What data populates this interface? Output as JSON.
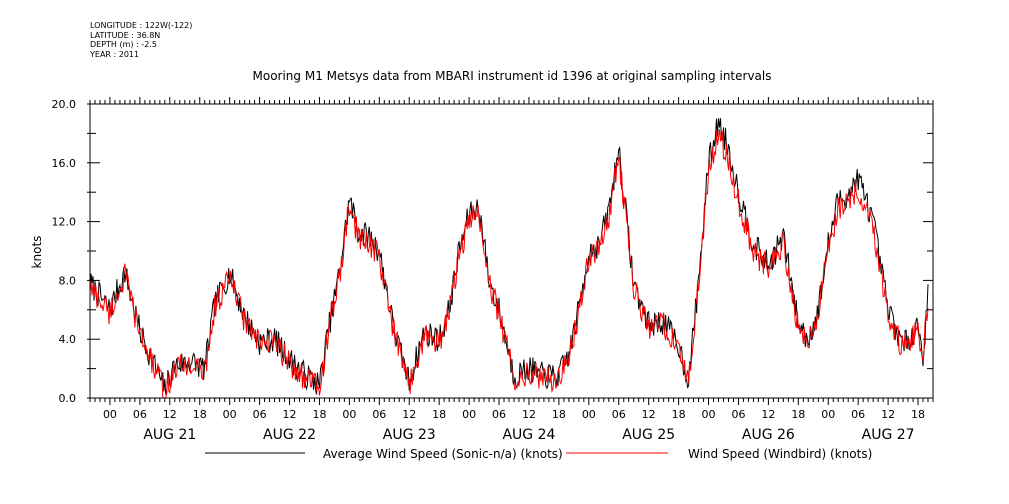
{
  "metadata": {
    "longitude": "LONGITUDE : 122W(-122)",
    "latitude": "LATITUDE : 36.8N",
    "depth": "DEPTH (m) : -2.5",
    "year": "YEAR : 2011"
  },
  "chart_data": {
    "type": "line",
    "title": "Mooring M1 Metsys data from MBARI instrument id 1396 at original sampling intervals",
    "ylabel": "knots",
    "ylim": [
      0,
      20
    ],
    "yticks": [
      "0.0",
      "4.0",
      "8.0",
      "12.0",
      "16.0",
      "20.0"
    ],
    "xlim_hours": [
      -4,
      165
    ],
    "hour_tick_labels": [
      "00",
      "06",
      "12",
      "18"
    ],
    "day_labels": [
      "AUG 21",
      "AUG 22",
      "AUG 23",
      "AUG 24",
      "AUG 25",
      "AUG 26",
      "AUG 27"
    ],
    "x_unit": "hours since 2011-08-21 00:00",
    "x": [
      -4,
      0,
      3,
      6,
      9,
      11,
      13,
      16,
      19,
      21,
      24,
      27,
      30,
      33,
      36,
      39,
      42,
      44,
      46,
      48,
      50,
      52,
      54,
      57,
      60,
      63,
      66,
      68,
      70,
      72,
      74,
      76,
      78,
      81,
      84,
      87,
      90,
      92,
      94,
      96,
      98,
      100,
      102,
      105,
      108,
      111,
      114,
      116,
      118,
      120,
      122,
      124,
      126,
      129,
      132,
      135,
      138,
      140,
      142,
      144,
      146,
      148,
      150,
      153,
      156,
      159,
      162,
      163,
      164
    ],
    "series": [
      {
        "name": "Average Wind Speed (Sonic-n/a) (knots)",
        "color": "#000000",
        "values": [
          7.8,
          6,
          8.6,
          4.5,
          2.2,
          0.6,
          2.2,
          2.5,
          2,
          6.4,
          8.5,
          5.5,
          3.8,
          4,
          2.6,
          1.6,
          0.9,
          5,
          8.5,
          13.5,
          11.2,
          11,
          10,
          4.5,
          1.1,
          4.5,
          4,
          6,
          10,
          12.5,
          13,
          8,
          6,
          1.5,
          2,
          1.5,
          1.5,
          3,
          6,
          10,
          10.3,
          12.8,
          17,
          7.8,
          5,
          5.2,
          3.6,
          1.2,
          8,
          16,
          18.8,
          17,
          14,
          10.5,
          9,
          11,
          5,
          4,
          6,
          10.5,
          13.5,
          13.8,
          15,
          12,
          6,
          3.5,
          5,
          2.8,
          7
        ],
        "jitter": 0.9
      },
      {
        "name": "Wind Speed (Windbird) (knots)",
        "color": "#ff0000",
        "values": [
          7.5,
          5.8,
          8.3,
          4.3,
          2,
          0.4,
          2,
          2.3,
          1.8,
          6.2,
          8.2,
          5.3,
          3.6,
          3.8,
          2.4,
          1.4,
          0.7,
          4.8,
          8.2,
          13,
          10.8,
          10.6,
          9.6,
          4.3,
          0.9,
          4.3,
          3.8,
          5.8,
          9.7,
          12,
          12.6,
          7.7,
          5.8,
          1.3,
          1.8,
          1.3,
          1.3,
          2.8,
          5.8,
          9.7,
          10,
          12.4,
          16.5,
          7.5,
          4.8,
          5,
          3.4,
          1,
          7.8,
          15.5,
          18,
          16.2,
          13.4,
          10.1,
          8.7,
          10.6,
          4.8,
          3.8,
          5.8,
          10.1,
          13,
          13.3,
          14.4,
          11.6,
          5.8,
          3.3,
          4.8,
          2.6,
          6.8
        ],
        "jitter": 0.9
      }
    ],
    "legend": "bottom",
    "grid": false
  }
}
